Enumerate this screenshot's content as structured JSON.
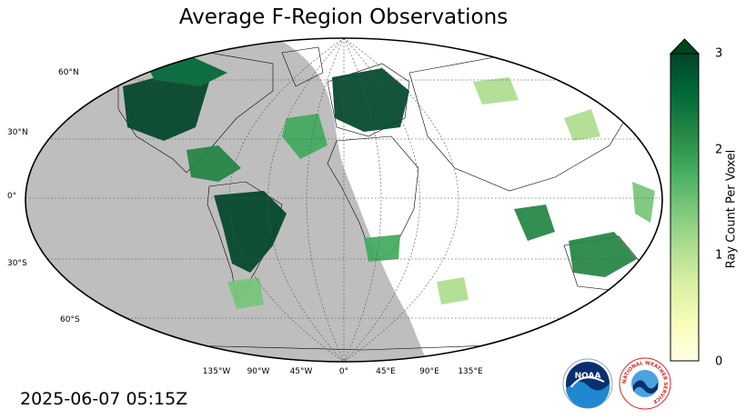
{
  "title": "Average F-Region Observations",
  "timestamp": "2025-06-07 05:15Z",
  "lat_labels": [
    "60°N",
    "30°N",
    "0°",
    "30°S",
    "60°S"
  ],
  "lon_labels": [
    "135°W",
    "90°W",
    "45°W",
    "0°",
    "45°E",
    "90°E",
    "135°E"
  ],
  "colorbar": {
    "title": "Ray Count Per Voxel",
    "ticks": [
      "3",
      "2",
      "1",
      "0"
    ],
    "range": [
      0,
      3
    ],
    "extend": "max",
    "colormap": [
      "#ffffe5",
      "#f7fcb9",
      "#d9f0a3",
      "#addd8e",
      "#78c679",
      "#41ab5d",
      "#238443",
      "#006837",
      "#004529"
    ]
  },
  "colors": {
    "night_shade": "#bebebe",
    "max_density": "#00441b"
  },
  "logos": [
    {
      "name": "noaa-logo",
      "text": "NOAA"
    },
    {
      "name": "nws-logo",
      "text": "NATIONAL WEATHER SERVICE"
    }
  ]
}
